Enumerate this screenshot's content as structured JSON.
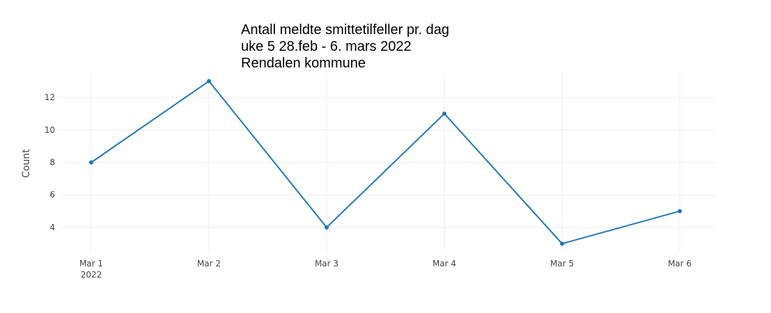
{
  "chart_data": {
    "type": "line",
    "title_lines": [
      "Antall meldte smittetilfeller pr. dag",
      "uke 5 28.feb - 6. mars 2022",
      "Rendalen kommune"
    ],
    "xlabel": "",
    "ylabel": "Count",
    "x": [
      "2022-03-01",
      "2022-03-02",
      "2022-03-03",
      "2022-03-04",
      "2022-03-05",
      "2022-03-06"
    ],
    "x_tick_labels": [
      "Mar 1",
      "Mar 2",
      "Mar 3",
      "Mar 4",
      "Mar 5",
      "Mar 6"
    ],
    "x_tick_sublabels": [
      "2022",
      "",
      "",
      "",
      "",
      ""
    ],
    "y_ticks": [
      4,
      6,
      8,
      10,
      12
    ],
    "ylim": [
      2.5,
      13.5
    ],
    "series": [
      {
        "values": [
          8,
          13,
          4,
          11,
          3,
          5
        ],
        "color": "#1f77b4"
      }
    ],
    "grid": true,
    "legend": "none"
  }
}
